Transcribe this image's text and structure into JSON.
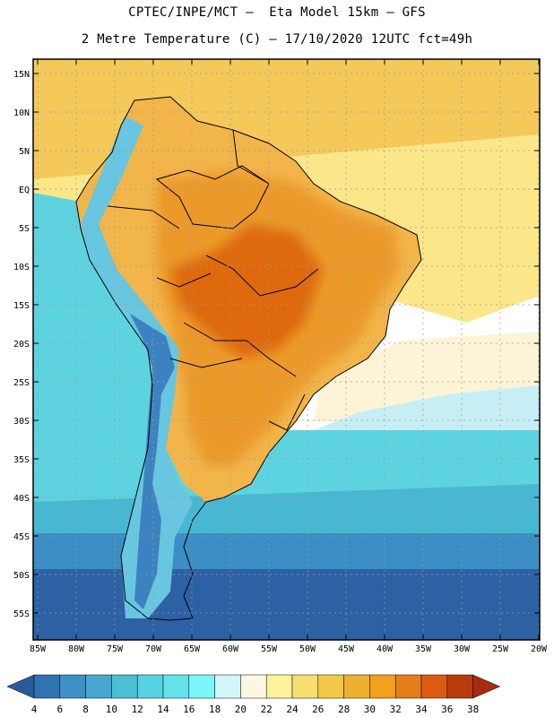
{
  "title_line1": "CPTEC/INPE/MCT –  Eta Model 15km – GFS",
  "title_line2": "2 Metre Temperature (C) – 17/10/2020 12UTC fct=49h",
  "lat_labels": [
    "15N",
    "10N",
    "5N",
    "EQ",
    "5S",
    "10S",
    "15S",
    "20S",
    "25S",
    "30S",
    "35S",
    "40S",
    "45S",
    "50S",
    "55S"
  ],
  "lon_labels": [
    "85W",
    "80W",
    "75W",
    "70W",
    "65W",
    "60W",
    "55W",
    "50W",
    "45W",
    "40W",
    "35W",
    "30W",
    "25W",
    "20W"
  ],
  "legend": {
    "labels": [
      "4",
      "6",
      "8",
      "10",
      "12",
      "14",
      "16",
      "18",
      "20",
      "22",
      "24",
      "26",
      "28",
      "30",
      "32",
      "34",
      "36",
      "38"
    ],
    "colors": [
      "#2a5a9c",
      "#2f73b2",
      "#3d90c6",
      "#45a8d0",
      "#4bbfd6",
      "#55d3e0",
      "#62e3ea",
      "#7af6f6",
      "#d3f6fb",
      "#fdf7e1",
      "#fdf39c",
      "#f7de6e",
      "#f3c84a",
      "#eeb030",
      "#f1a11f",
      "#e77e1c",
      "#db5c10",
      "#b83b0c",
      "#a82d10"
    ]
  },
  "field_colors": {
    "ocean_warm": "#f4c95a",
    "ocean_mild": "#fbe78a",
    "ocean_pale": "#fdf3d6",
    "ocean_light": "#c8eef5",
    "ocean_cyan": "#5ed3e0",
    "ocean_teal": "#48b8d2",
    "ocean_mid": "#3a8ec4",
    "ocean_deep": "#2c62a4",
    "land_hot": "#de6a10",
    "land_warm": "#eb9a2c",
    "land_mild": "#f2b54a",
    "andes_cold": "#3d82c0",
    "andes_cool": "#68c6e0"
  }
}
